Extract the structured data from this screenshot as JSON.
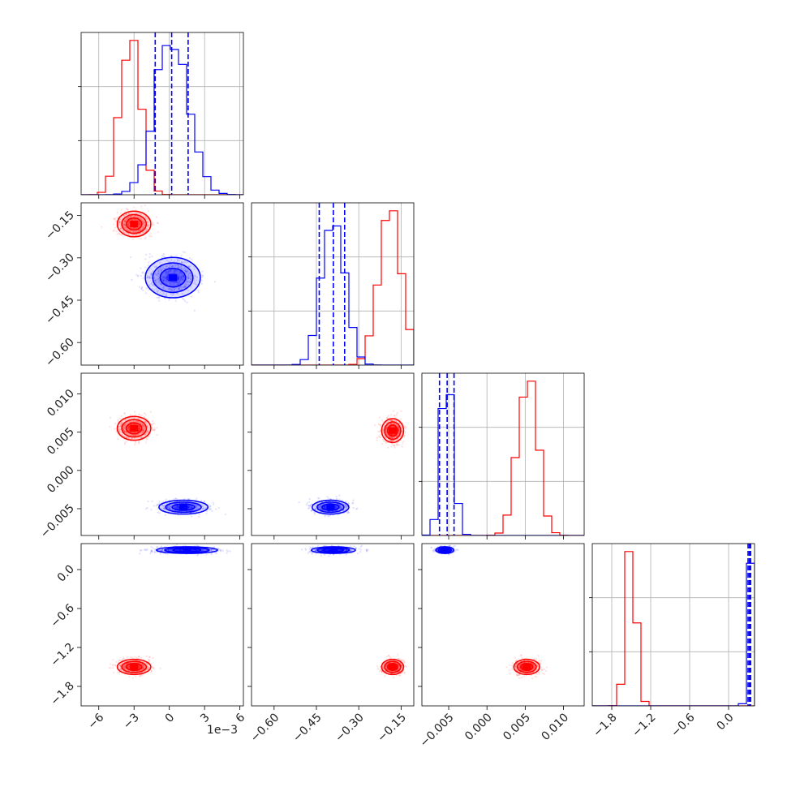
{
  "chart_data": {
    "type": "corner",
    "colors": {
      "series_a": "#ff0000",
      "series_b": "#0000ff"
    },
    "params": [
      {
        "range": [
          -7.5,
          6.3
        ],
        "ticks": [
          -6,
          -3,
          0,
          3,
          6
        ],
        "tick_labels": [
          "−6",
          "−3",
          "0",
          "3",
          "6"
        ],
        "offset_label": "1e−3"
      },
      {
        "range": [
          -0.68,
          -0.105
        ],
        "ticks": [
          -0.6,
          -0.45,
          -0.3,
          -0.15
        ],
        "tick_labels": [
          "−0.60",
          "−0.45",
          "−0.30",
          "−0.15"
        ]
      },
      {
        "range": [
          -0.0085,
          0.0127
        ],
        "ticks": [
          -0.005,
          0.0,
          0.005,
          0.01
        ],
        "tick_labels": [
          "−0.005",
          "0.000",
          "0.005",
          "0.010"
        ]
      },
      {
        "range": [
          -2.1,
          0.4
        ],
        "ticks": [
          -1.8,
          -1.2,
          -0.6,
          0.0
        ],
        "tick_labels": [
          "−1.8",
          "−1.2",
          "−0.6",
          "0.0"
        ]
      }
    ],
    "marginals": [
      {
        "series_a": {
          "center": -3.3,
          "sd": 0.85
        },
        "series_b": {
          "center": 0.2,
          "sd": 1.4
        },
        "quantiles_b": [
          -1.2,
          0.2,
          1.6
        ]
      },
      {
        "series_a": {
          "center": -0.19,
          "sd": 0.04
        },
        "series_b": {
          "center": -0.39,
          "sd": 0.04
        },
        "quantiles_b": [
          -0.44,
          -0.39,
          -0.35
        ]
      },
      {
        "series_a": {
          "center": 0.0053,
          "sd": 0.0013
        },
        "series_b": {
          "center": -0.0052,
          "sd": 0.0008
        },
        "quantiles_b": [
          -0.0062,
          -0.0052,
          -0.0043
        ]
      },
      {
        "series_a": {
          "center": -1.5,
          "sd": 0.08
        },
        "series_b": {
          "center": 0.33,
          "sd": 0.04
        },
        "quantiles_b": [
          0.3,
          0.32,
          0.34
        ]
      }
    ],
    "joint": [
      {
        "row": 1,
        "col": 0,
        "series_a": {
          "center": [
            -3.0,
            -0.18
          ],
          "spread": [
            1.1,
            0.035
          ]
        },
        "series_b": {
          "center": [
            0.3,
            -0.37
          ],
          "spread": [
            1.8,
            0.055
          ]
        }
      },
      {
        "row": 2,
        "col": 0,
        "series_a": {
          "center": [
            -3.0,
            0.0055
          ],
          "spread": [
            1.1,
            0.0012
          ]
        },
        "series_b": {
          "center": [
            1.2,
            -0.0048
          ],
          "spread": [
            1.6,
            0.0007
          ]
        }
      },
      {
        "row": 2,
        "col": 1,
        "series_a": {
          "center": [
            -0.18,
            0.0052
          ],
          "spread": [
            0.03,
            0.0012
          ]
        },
        "series_b": {
          "center": [
            -0.4,
            -0.0048
          ],
          "spread": [
            0.05,
            0.0007
          ]
        }
      },
      {
        "row": 3,
        "col": 0,
        "series_a": {
          "center": [
            -3.0,
            -1.5
          ],
          "spread": [
            1.1,
            0.09
          ]
        },
        "series_b": {
          "center": [
            1.5,
            0.3
          ],
          "spread": [
            2.0,
            0.04
          ]
        }
      },
      {
        "row": 3,
        "col": 1,
        "series_a": {
          "center": [
            -0.18,
            -1.5
          ],
          "spread": [
            0.03,
            0.09
          ]
        },
        "series_b": {
          "center": [
            -0.39,
            0.3
          ],
          "spread": [
            0.06,
            0.04
          ]
        }
      },
      {
        "row": 3,
        "col": 2,
        "series_a": {
          "center": [
            0.0052,
            -1.5
          ],
          "spread": [
            0.0013,
            0.09
          ]
        },
        "series_b": {
          "center": [
            -0.0055,
            0.3
          ],
          "spread": [
            0.0009,
            0.04
          ]
        }
      }
    ]
  }
}
